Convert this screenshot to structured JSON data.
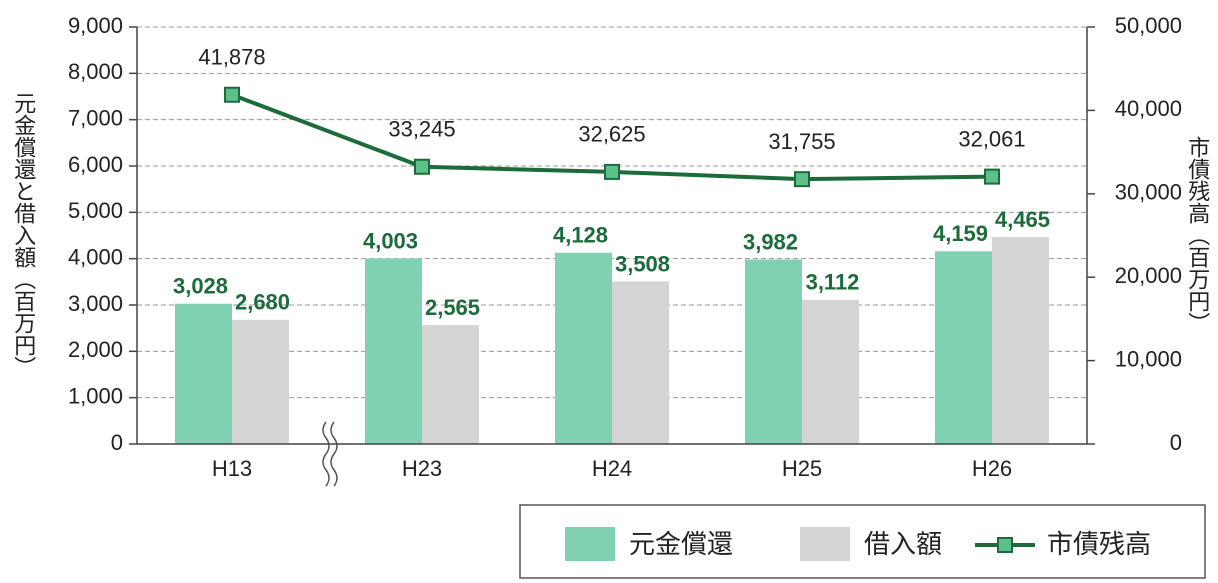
{
  "chart_data": {
    "type": "bar",
    "categories": [
      "H13",
      "H23",
      "H24",
      "H25",
      "H26"
    ],
    "y_label": "元金償還と借入額（百万円）",
    "y2_label": "市債残高（百万円）",
    "ylim": [
      0,
      9000
    ],
    "yticks": [
      0,
      {
        "value": 1000,
        "label": "1,000"
      },
      {
        "value": 2000,
        "label": "2,000"
      },
      {
        "value": 3000,
        "label": "3,000"
      },
      {
        "value": 4000,
        "label": "4,000"
      },
      {
        "value": 5000,
        "label": "5,000"
      },
      {
        "value": 6000,
        "label": "6,000"
      },
      {
        "value": 7000,
        "label": "7,000"
      },
      {
        "value": 8000,
        "label": "8,000"
      },
      {
        "value": 9000,
        "label": "9,000"
      }
    ],
    "y2lim": [
      0,
      50000
    ],
    "y2ticks": [
      0,
      {
        "value": 10000,
        "label": "10,000"
      },
      {
        "value": 20000,
        "label": "20,000"
      },
      {
        "value": 30000,
        "label": "30,000"
      },
      {
        "value": 40000,
        "label": "40,000"
      },
      {
        "value": 50000,
        "label": "50,000"
      }
    ],
    "grid": true,
    "series": [
      {
        "name": "元金償還",
        "type": "bar",
        "color": "#80d0b2",
        "label_color": "#1c6b3a",
        "values": [
          3028,
          4003,
          4128,
          3982,
          4159
        ],
        "value_labels": [
          "3,028",
          "4,003",
          "4,128",
          "3,982",
          "4,159"
        ]
      },
      {
        "name": "借入額",
        "type": "bar",
        "color": "#d4d4d4",
        "label_color": "#1c6b3a",
        "values": [
          2680,
          2565,
          3508,
          3112,
          4465
        ],
        "value_labels": [
          "2,680",
          "2,565",
          "3,508",
          "3,112",
          "4,465"
        ]
      },
      {
        "name": "市債残高",
        "type": "line",
        "axis": "y2",
        "color": "#1c6b3a",
        "marker_color": "#5cbf8c",
        "label_color": "#222222",
        "values": [
          41878,
          33245,
          32625,
          31755,
          32061
        ],
        "value_labels": [
          "41,878",
          "33,245",
          "32,625",
          "31,755",
          "32,061"
        ]
      }
    ]
  }
}
